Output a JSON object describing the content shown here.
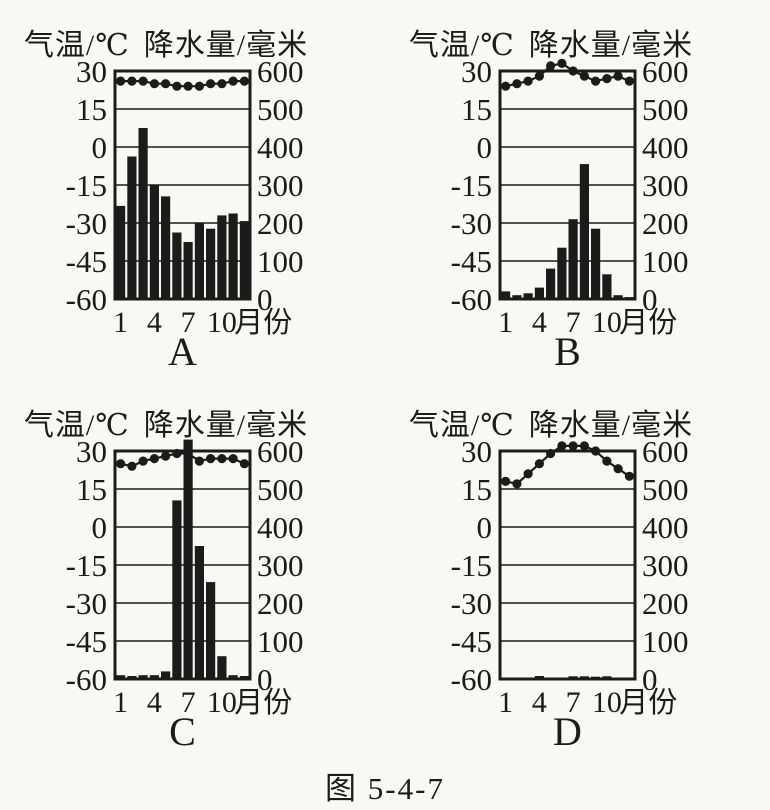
{
  "colors": {
    "paper": "#f9f8f4",
    "ink": "#1c1b1a"
  },
  "figure_caption": "图 5-4-7",
  "axis": {
    "temp_title": "气温/℃",
    "precip_title": "降水量/毫米",
    "temp_ticks": [
      "30",
      "15",
      "0",
      "-15",
      "-30",
      "-45",
      "-60"
    ],
    "precip_ticks": [
      "600",
      "500",
      "400",
      "300",
      "200",
      "100",
      "0"
    ],
    "temp_range": [
      -60,
      30
    ],
    "precip_range": [
      0,
      600
    ],
    "x_ticks": [
      1,
      4,
      7,
      10
    ],
    "x_unit": "月份"
  },
  "chart_data": [
    {
      "label": "A",
      "type": "bar+line climograph",
      "months": [
        1,
        2,
        3,
        4,
        5,
        6,
        7,
        8,
        9,
        10,
        11,
        12
      ],
      "series": [
        {
          "name": "气温/℃",
          "type": "line",
          "values": [
            26,
            26,
            26,
            25,
            25,
            24,
            24,
            24,
            25,
            25,
            26,
            26
          ]
        },
        {
          "name": "降水量/毫米",
          "type": "bar",
          "values": [
            245,
            375,
            450,
            300,
            270,
            175,
            150,
            200,
            185,
            220,
            225,
            205
          ]
        }
      ],
      "temp_ylim": [
        -60,
        30
      ],
      "precip_ylim": [
        0,
        600
      ],
      "legend": "none",
      "grid": "horizontal"
    },
    {
      "label": "B",
      "type": "bar+line climograph",
      "months": [
        1,
        2,
        3,
        4,
        5,
        6,
        7,
        8,
        9,
        10,
        11,
        12
      ],
      "series": [
        {
          "name": "气温/℃",
          "type": "line",
          "values": [
            24,
            25,
            26,
            28,
            32,
            33,
            30,
            28,
            26,
            27,
            28,
            26
          ]
        },
        {
          "name": "降水量/毫米",
          "type": "bar",
          "values": [
            20,
            10,
            15,
            30,
            80,
            135,
            210,
            355,
            185,
            65,
            10,
            5
          ]
        }
      ],
      "temp_ylim": [
        -60,
        30
      ],
      "precip_ylim": [
        0,
        600
      ],
      "legend": "none",
      "grid": "horizontal"
    },
    {
      "label": "C",
      "type": "bar+line climograph",
      "months": [
        1,
        2,
        3,
        4,
        5,
        6,
        7,
        8,
        9,
        10,
        11,
        12
      ],
      "series": [
        {
          "name": "气温/℃",
          "type": "line",
          "values": [
            25,
            24,
            26,
            27,
            28,
            29,
            29,
            26,
            27,
            27,
            27,
            25
          ]
        },
        {
          "name": "降水量/毫米",
          "type": "bar",
          "values": [
            10,
            8,
            10,
            10,
            20,
            470,
            630,
            350,
            255,
            60,
            10,
            8
          ]
        }
      ],
      "temp_ylim": [
        -60,
        30
      ],
      "precip_ylim": [
        0,
        600
      ],
      "legend": "none",
      "grid": "horizontal"
    },
    {
      "label": "D",
      "type": "bar+line climograph",
      "months": [
        1,
        2,
        3,
        4,
        5,
        6,
        7,
        8,
        9,
        10,
        11,
        12
      ],
      "series": [
        {
          "name": "气温/℃",
          "type": "line",
          "values": [
            18,
            17,
            21,
            25,
            29,
            32,
            32,
            32,
            30,
            26,
            23,
            20
          ]
        },
        {
          "name": "降水量/毫米",
          "type": "bar",
          "values": [
            0,
            0,
            0,
            8,
            0,
            0,
            7,
            7,
            6,
            7,
            0,
            0
          ]
        }
      ],
      "temp_ylim": [
        -60,
        30
      ],
      "precip_ylim": [
        0,
        600
      ],
      "legend": "none",
      "grid": "horizontal"
    }
  ]
}
